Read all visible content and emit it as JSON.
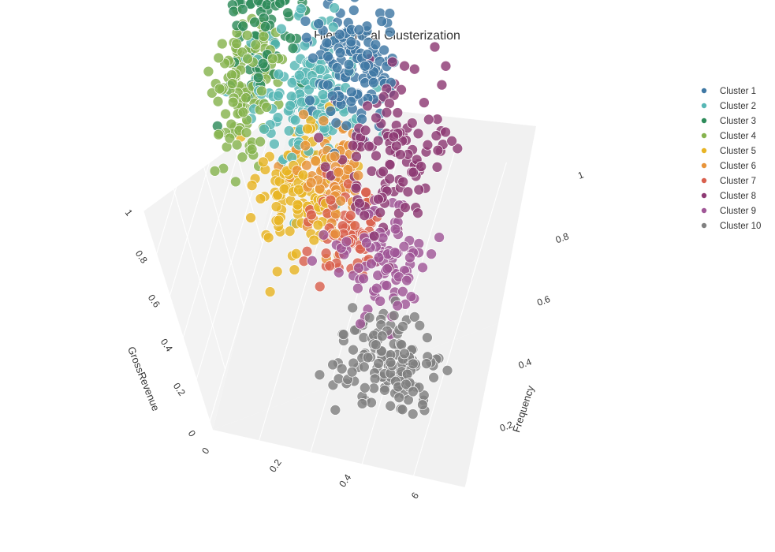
{
  "chart_data": {
    "type": "scatter3d",
    "title": "Hierarchical Clusterization",
    "axes": {
      "x": {
        "title": "",
        "ticks": [
          "0",
          "0.2",
          "0.4",
          "6"
        ]
      },
      "y": {
        "title": "Frequency",
        "ticks": [
          "0.2",
          "0.4",
          "0.6",
          "0.8",
          "1"
        ]
      },
      "z": {
        "title": "GrossRevenue",
        "ticks": [
          "0",
          "0.2",
          "0.4",
          "0.6",
          "0.8",
          "1"
        ]
      }
    },
    "grid": true,
    "legend_position": "top-right",
    "series": [
      {
        "name": "Cluster 1",
        "color": "#3f78a4",
        "center": [
          0.42,
          0.82,
          0.62
        ],
        "spread": [
          0.08,
          0.08,
          0.1
        ],
        "count": 130
      },
      {
        "name": "Cluster 2",
        "color": "#57b7b5",
        "center": [
          0.22,
          0.78,
          0.47
        ],
        "spread": [
          0.09,
          0.09,
          0.11
        ],
        "count": 150
      },
      {
        "name": "Cluster 3",
        "color": "#2e8b5a",
        "center": [
          0.05,
          0.9,
          0.74
        ],
        "spread": [
          0.09,
          0.09,
          0.14
        ],
        "count": 150
      },
      {
        "name": "Cluster 4",
        "color": "#86b34e",
        "center": [
          0.02,
          0.72,
          0.55
        ],
        "spread": [
          0.06,
          0.1,
          0.12
        ],
        "count": 130
      },
      {
        "name": "Cluster 5",
        "color": "#e8b425",
        "center": [
          0.22,
          0.6,
          0.3
        ],
        "spread": [
          0.07,
          0.09,
          0.09
        ],
        "count": 120
      },
      {
        "name": "Cluster 6",
        "color": "#e8943a",
        "center": [
          0.36,
          0.62,
          0.38
        ],
        "spread": [
          0.06,
          0.07,
          0.08
        ],
        "count": 90
      },
      {
        "name": "Cluster 7",
        "color": "#d9604e",
        "center": [
          0.42,
          0.52,
          0.26
        ],
        "spread": [
          0.06,
          0.06,
          0.07
        ],
        "count": 80
      },
      {
        "name": "Cluster 8",
        "color": "#8e3a74",
        "center": [
          0.63,
          0.62,
          0.53
        ],
        "spread": [
          0.09,
          0.1,
          0.1
        ],
        "count": 120
      },
      {
        "name": "Cluster 9",
        "color": "#a05797",
        "center": [
          0.62,
          0.4,
          0.33
        ],
        "spread": [
          0.08,
          0.07,
          0.08
        ],
        "count": 90
      },
      {
        "name": "Cluster 10",
        "color": "#808080",
        "center": [
          0.68,
          0.22,
          0.17
        ],
        "spread": [
          0.1,
          0.07,
          0.07
        ],
        "count": 140
      }
    ]
  }
}
